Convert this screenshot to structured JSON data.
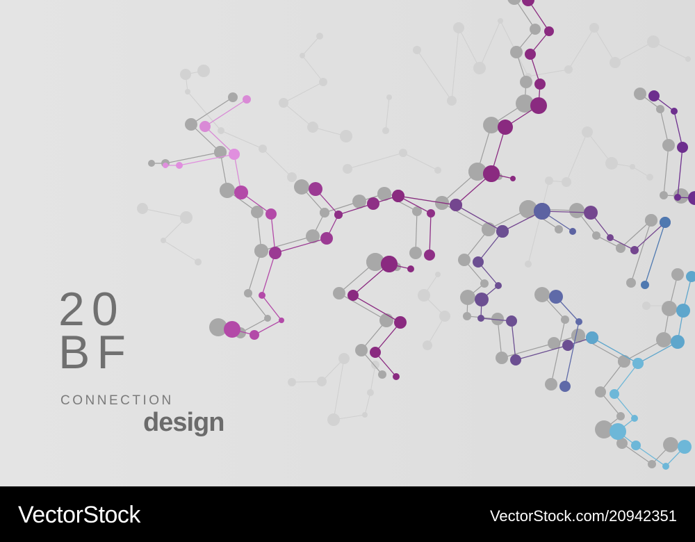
{
  "title": {
    "number": "20",
    "letters": "BF"
  },
  "tagline": {
    "line1": "CONNECTION",
    "line2": "design"
  },
  "footer": {
    "brand": "VectorStock",
    "url": "VectorStock.com/20942351"
  }
}
